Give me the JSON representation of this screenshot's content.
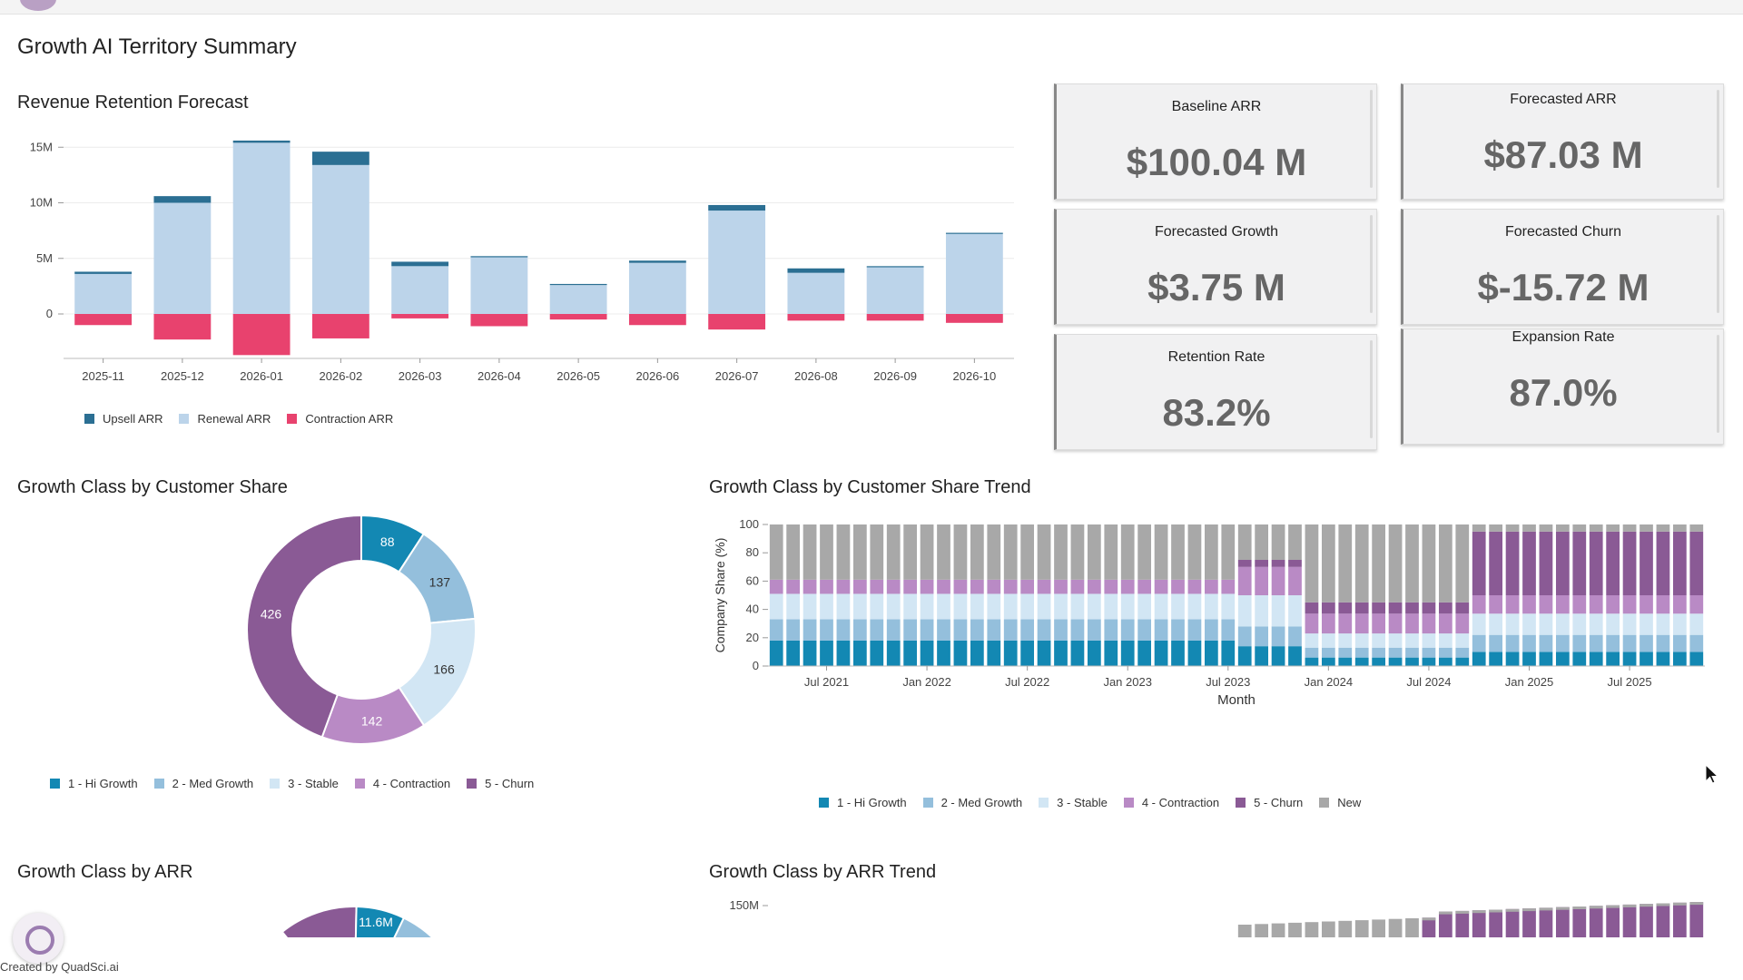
{
  "page": {
    "title": "Growth AI Territory Summary",
    "footer": "Created by QuadSci.ai"
  },
  "sections": {
    "revenue_retention": "Revenue Retention Forecast",
    "class_share": "Growth Class by Customer Share",
    "class_share_trend": "Growth Class by Customer Share Trend",
    "class_arr": "Growth Class by ARR",
    "class_arr_trend": "Growth Class by ARR Trend"
  },
  "kpis": [
    {
      "label": "Baseline ARR",
      "value": "$100.04 M"
    },
    {
      "label": "Forecasted ARR",
      "value": "$87.03 M"
    },
    {
      "label": "Forecasted Growth",
      "value": "$3.75 M"
    },
    {
      "label": "Forecasted Churn",
      "value": "$-15.72 M"
    },
    {
      "label": "Retention Rate",
      "value": "83.2%"
    },
    {
      "label": "Expansion Rate",
      "value": "87.0%"
    }
  ],
  "colors": {
    "upsell": "#2b6f93",
    "renewal": "#bcd4ea",
    "contraction": "#e8426e",
    "hi_growth": "#1388b3",
    "med_growth": "#94bfdc",
    "stable": "#d2e6f4",
    "contraction_class": "#b98ac5",
    "churn": "#8a5a95",
    "new": "#a8a8a8"
  },
  "chart_data": [
    {
      "id": "revenue_retention",
      "type": "bar",
      "categories": [
        "2025-11",
        "2025-12",
        "2026-01",
        "2026-02",
        "2026-03",
        "2026-04",
        "2026-05",
        "2026-06",
        "2026-07",
        "2026-08",
        "2026-09",
        "2026-10"
      ],
      "series": [
        {
          "name": "Renewal ARR",
          "values": [
            3.6,
            10.0,
            15.4,
            13.4,
            4.3,
            5.1,
            2.6,
            4.6,
            9.3,
            3.7,
            4.2,
            7.2
          ]
        },
        {
          "name": "Upsell ARR",
          "values": [
            0.2,
            0.6,
            0.2,
            1.2,
            0.4,
            0.1,
            0.1,
            0.2,
            0.5,
            0.4,
            0.1,
            0.1
          ]
        },
        {
          "name": "Contraction ARR",
          "values": [
            -1.0,
            -2.3,
            -3.7,
            -2.2,
            -0.4,
            -1.1,
            -0.5,
            -1.0,
            -1.4,
            -0.6,
            -0.6,
            -0.8
          ]
        }
      ],
      "yticks": [
        "15M",
        "10M",
        "5M",
        "0"
      ],
      "ylim": [
        -4,
        16
      ],
      "legend": [
        "Upsell ARR",
        "Renewal ARR",
        "Contraction ARR"
      ]
    },
    {
      "id": "class_share",
      "type": "pie",
      "slices": [
        {
          "name": "1 - Hi Growth",
          "value": 88
        },
        {
          "name": "2 - Med Growth",
          "value": 137
        },
        {
          "name": "3 - Stable",
          "value": 166
        },
        {
          "name": "4 - Contraction",
          "value": 142
        },
        {
          "name": "5 - Churn",
          "value": 426
        }
      ],
      "labels": [
        "88",
        "137",
        "166",
        "142",
        "426"
      ],
      "legend": [
        "1 - Hi Growth",
        "2 - Med Growth",
        "3 - Stable",
        "4 - Contraction",
        "5 - Churn"
      ]
    },
    {
      "id": "class_share_trend",
      "type": "bar",
      "stacked": true,
      "ylabel": "Company Share (%)",
      "xlabel": "Month",
      "ylim": [
        0,
        100
      ],
      "yticks": [
        "100",
        "80",
        "60",
        "40",
        "20",
        "0"
      ],
      "xticks": [
        "Jul 2021",
        "Jan 2022",
        "Jul 2022",
        "Jan 2023",
        "Jul 2023",
        "Jan 2024",
        "Jul 2024",
        "Jan 2025",
        "Jul 2025"
      ],
      "periods": 56,
      "phases": [
        {
          "months": 28,
          "hi_growth": 18,
          "med_growth": 15,
          "stable": 18,
          "contraction": 10,
          "churn": 0
        },
        {
          "months": 4,
          "hi_growth": 14,
          "med_growth": 14,
          "stable": 22,
          "contraction": 20,
          "churn": 5
        },
        {
          "months": 10,
          "hi_growth": 6,
          "med_growth": 7,
          "stable": 10,
          "contraction": 14,
          "churn": 8
        },
        {
          "months": 14,
          "hi_growth": 10,
          "med_growth": 12,
          "stable": 15,
          "contraction": 13,
          "churn": 45
        }
      ],
      "legend": [
        "1 - Hi Growth",
        "2 - Med Growth",
        "3 - Stable",
        "4 - Contraction",
        "5 - Churn",
        "New"
      ]
    },
    {
      "id": "class_arr",
      "type": "pie",
      "visible_label": "11.6M"
    },
    {
      "id": "class_arr_trend",
      "type": "bar",
      "yticks": [
        "150M"
      ]
    }
  ]
}
